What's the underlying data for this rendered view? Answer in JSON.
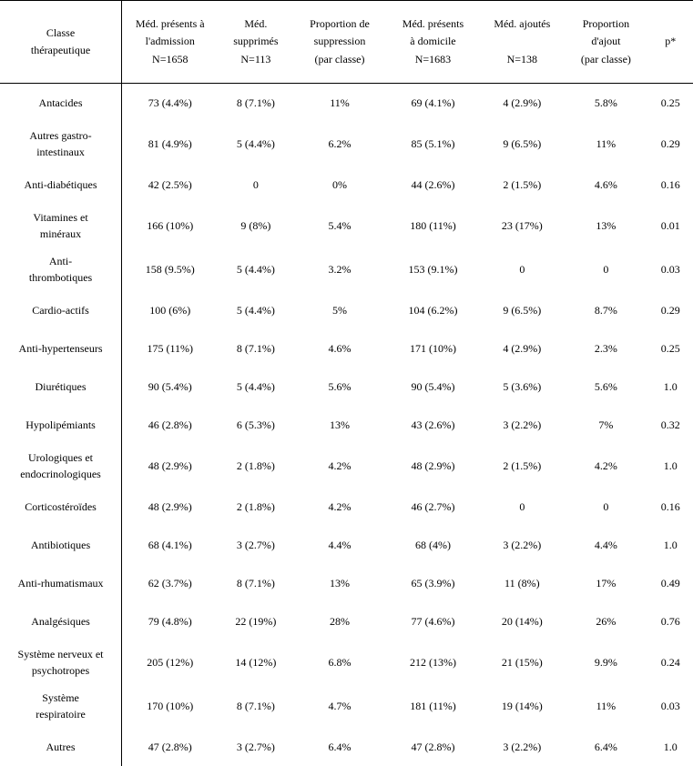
{
  "table": {
    "columns": [
      {
        "line1": "Classe",
        "line2": "thérapeutique",
        "line3": ""
      },
      {
        "line1": "Méd. présents à",
        "line2": "l'admission",
        "line3": "N=1658"
      },
      {
        "line1": "Méd.",
        "line2": "supprimés",
        "line3": "N=113"
      },
      {
        "line1": "Proportion de",
        "line2": "suppression",
        "line3": "(par classe)"
      },
      {
        "line1": "Méd. présents",
        "line2": "à domicile",
        "line3": "N=1683"
      },
      {
        "line1": "Méd. ajoutés",
        "line2": "",
        "line3": "N=138"
      },
      {
        "line1": "Proportion",
        "line2": "d'ajout",
        "line3": "(par classe)"
      },
      {
        "line1": "p*",
        "line2": "",
        "line3": ""
      }
    ],
    "rows": [
      {
        "label": "Antacides",
        "c1": "73 (4.4%)",
        "c2": "8 (7.1%)",
        "c3": "11%",
        "c4": "69 (4.1%)",
        "c5": "4 (2.9%)",
        "c6": "5.8%",
        "c7": "0.25"
      },
      {
        "label": "Autres gastro-\nintestinaux",
        "c1": "81 (4.9%)",
        "c2": "5 (4.4%)",
        "c3": "6.2%",
        "c4": "85 (5.1%)",
        "c5": "9 (6.5%)",
        "c6": "11%",
        "c7": "0.29"
      },
      {
        "label": "Anti-diabétiques",
        "c1": "42 (2.5%)",
        "c2": "0",
        "c3": "0%",
        "c4": "44 (2.6%)",
        "c5": "2 (1.5%)",
        "c6": "4.6%",
        "c7": "0.16"
      },
      {
        "label": "Vitamines et\nminéraux",
        "c1": "166 (10%)",
        "c2": "9 (8%)",
        "c3": "5.4%",
        "c4": "180 (11%)",
        "c5": "23 (17%)",
        "c6": "13%",
        "c7": "0.01"
      },
      {
        "label": "Anti-\nthrombotiques",
        "c1": "158 (9.5%)",
        "c2": "5 (4.4%)",
        "c3": "3.2%",
        "c4": "153 (9.1%)",
        "c5": "0",
        "c6": "0",
        "c7": "0.03"
      },
      {
        "label": "Cardio-actifs",
        "c1": "100 (6%)",
        "c2": "5 (4.4%)",
        "c3": "5%",
        "c4": "104 (6.2%)",
        "c5": "9 (6.5%)",
        "c6": "8.7%",
        "c7": "0.29"
      },
      {
        "label": "Anti-hypertenseurs",
        "c1": "175 (11%)",
        "c2": "8 (7.1%)",
        "c3": "4.6%",
        "c4": "171 (10%)",
        "c5": "4 (2.9%)",
        "c6": "2.3%",
        "c7": "0.25"
      },
      {
        "label": "Diurétiques",
        "c1": "90 (5.4%)",
        "c2": "5 (4.4%)",
        "c3": "5.6%",
        "c4": "90 (5.4%)",
        "c5": "5 (3.6%)",
        "c6": "5.6%",
        "c7": "1.0"
      },
      {
        "label": "Hypolipémiants",
        "c1": "46 (2.8%)",
        "c2": "6 (5.3%)",
        "c3": "13%",
        "c4": "43 (2.6%)",
        "c5": "3 (2.2%)",
        "c6": "7%",
        "c7": "0.32"
      },
      {
        "label": "Urologiques et\nendocrinologiques",
        "c1": "48 (2.9%)",
        "c2": "2 (1.8%)",
        "c3": "4.2%",
        "c4": "48 (2.9%)",
        "c5": "2 (1.5%)",
        "c6": "4.2%",
        "c7": "1.0"
      },
      {
        "label": "Corticostéroïdes",
        "c1": "48 (2.9%)",
        "c2": "2 (1.8%)",
        "c3": "4.2%",
        "c4": "46 (2.7%)",
        "c5": "0",
        "c6": "0",
        "c7": "0.16"
      },
      {
        "label": "Antibiotiques",
        "c1": "68 (4.1%)",
        "c2": "3 (2.7%)",
        "c3": "4.4%",
        "c4": "68 (4%)",
        "c5": "3 (2.2%)",
        "c6": "4.4%",
        "c7": "1.0"
      },
      {
        "label": "Anti-rhumatismaux",
        "c1": "62 (3.7%)",
        "c2": "8 (7.1%)",
        "c3": "13%",
        "c4": "65 (3.9%)",
        "c5": "11 (8%)",
        "c6": "17%",
        "c7": "0.49"
      },
      {
        "label": "Analgésiques",
        "c1": "79 (4.8%)",
        "c2": "22 (19%)",
        "c3": "28%",
        "c4": "77 (4.6%)",
        "c5": "20 (14%)",
        "c6": "26%",
        "c7": "0.76"
      },
      {
        "label": "Système nerveux et\npsychotropes",
        "c1": "205 (12%)",
        "c2": "14 (12%)",
        "c3": "6.8%",
        "c4": "212 (13%)",
        "c5": "21 (15%)",
        "c6": "9.9%",
        "c7": "0.24"
      },
      {
        "label": "Système\nrespiratoire",
        "c1": "170 (10%)",
        "c2": "8 (7.1%)",
        "c3": "4.7%",
        "c4": "181 (11%)",
        "c5": "19 (14%)",
        "c6": "11%",
        "c7": "0.03"
      },
      {
        "label": "Autres",
        "c1": "47 (2.8%)",
        "c2": "3 (2.7%)",
        "c3": "6.4%",
        "c4": "47 (2.8%)",
        "c5": "3 (2.2%)",
        "c6": "6.4%",
        "c7": "1.0"
      }
    ],
    "style": {
      "font_family": "Times New Roman",
      "body_fontsize_pt": 9,
      "text_color": "#000000",
      "background_color": "#ffffff",
      "border_color": "#000000"
    }
  }
}
